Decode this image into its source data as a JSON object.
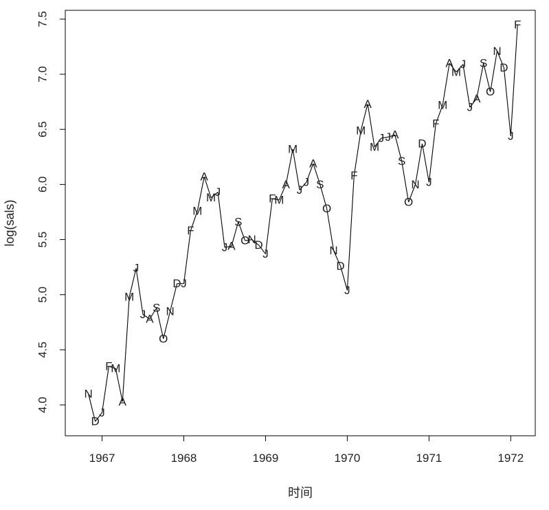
{
  "chart_data": {
    "type": "line",
    "title": "",
    "xlabel": "时间",
    "ylabel": "log(sals)",
    "xlim": [
      1966.55,
      1972.3
    ],
    "ylim": [
      3.72,
      7.58
    ],
    "x_ticks": [
      "1967",
      "1968",
      "1969",
      "1970",
      "1971",
      "1972"
    ],
    "y_ticks": [
      "4.0",
      "4.5",
      "5.0",
      "5.5",
      "6.0",
      "6.5",
      "7.0",
      "7.5"
    ],
    "series": [
      {
        "x": [
          1966.8333,
          1966.9167,
          1967.0,
          1967.0833,
          1967.1667,
          1967.25,
          1967.3333,
          1967.4167,
          1967.5,
          1967.5833,
          1967.6667,
          1967.75,
          1967.8333,
          1967.9167,
          1968.0,
          1968.0833,
          1968.1667,
          1968.25,
          1968.3333,
          1968.4167,
          1968.5,
          1968.5833,
          1968.6667,
          1968.75,
          1968.8333,
          1968.9167,
          1969.0,
          1969.0833,
          1969.1667,
          1969.25,
          1969.3333,
          1969.4167,
          1969.5,
          1969.5833,
          1969.6667,
          1969.75,
          1969.8333,
          1969.9167,
          1970.0,
          1970.0833,
          1970.1667,
          1970.25,
          1970.3333,
          1970.4167,
          1970.5,
          1970.5833,
          1970.6667,
          1970.75,
          1970.8333,
          1970.9167,
          1971.0,
          1971.0833,
          1971.1667,
          1971.25,
          1971.3333,
          1971.4167,
          1971.5,
          1971.5833,
          1971.6667,
          1971.75,
          1971.8333,
          1971.9167,
          1972.0,
          1972.0833
        ],
        "y": [
          4.1,
          3.85,
          3.93,
          4.35,
          4.33,
          4.03,
          4.98,
          5.24,
          4.82,
          4.78,
          4.88,
          4.6,
          4.85,
          5.1,
          5.1,
          5.58,
          5.76,
          6.07,
          5.88,
          5.93,
          5.43,
          5.44,
          5.66,
          5.49,
          5.5,
          5.45,
          5.37,
          5.87,
          5.86,
          6.0,
          6.32,
          5.95,
          6.02,
          6.19,
          6.0,
          5.78,
          5.4,
          5.26,
          5.04,
          6.08,
          6.49,
          6.73,
          6.34,
          6.42,
          6.43,
          6.45,
          6.21,
          5.84,
          6.0,
          6.37,
          6.02,
          6.55,
          6.72,
          7.1,
          7.02,
          7.09,
          6.7,
          6.78,
          7.1,
          6.84,
          7.21,
          7.06,
          6.44,
          7.45
        ],
        "labels": [
          "N",
          "D",
          "J",
          "F",
          "M",
          "A",
          "M",
          "J",
          "J",
          "A",
          "S",
          "O",
          "N",
          "D",
          "J",
          "F",
          "M",
          "A",
          "M",
          "J",
          "J",
          "A",
          "S",
          "O",
          "N",
          "D",
          "J",
          "F",
          "M",
          "A",
          "M",
          "J",
          "J",
          "A",
          "S",
          "O",
          "N",
          "D",
          "J",
          "F",
          "M",
          "A",
          "M",
          "J",
          "J",
          "A",
          "S",
          "O",
          "N",
          "D",
          "J",
          "F",
          "M",
          "A",
          "M",
          "J",
          "J",
          "A",
          "S",
          "O",
          "N",
          "D",
          "J",
          "F"
        ]
      }
    ],
    "grid": false,
    "legend": "none",
    "line_color": "#000000"
  }
}
